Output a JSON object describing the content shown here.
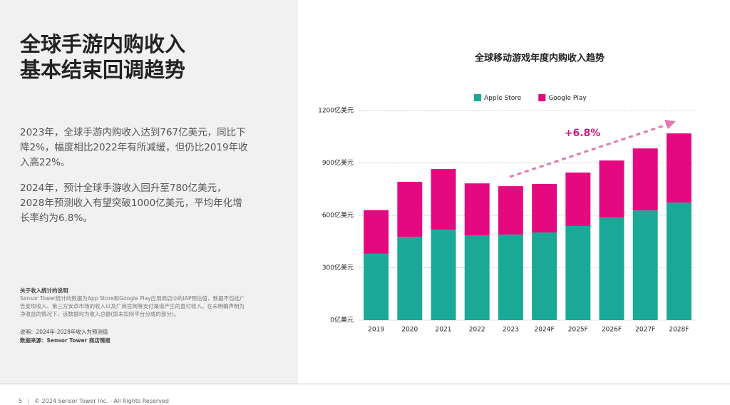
{
  "slide": {
    "title_lines": [
      "全球手游内购收入",
      "基本结束回调趋势"
    ],
    "paragraphs": [
      "2023年，全球手游内购收入达到767亿美元，同比下降2%，幅度相比2022年有所减缓，但仍比2019年收入高22%。",
      "2024年，预计全球手游收入回升至780亿美元，2028年预测收入有望突破1000亿美元，平均年化增长率约为6.8%。"
    ],
    "note_heading": "关于收入统计的说明",
    "note_text": "Sensor Tower统计的数据为App Store和Google Play应用商店中的IAP预估值，数据不包括广告变现收入、第三方安卓市场的收入以及厂商官网等支付渠道产生的直付收入。在未明确声明为净收益的情况下，该数据均为收入总额(即未扣除平台分成的部分)。",
    "footnote_lines": [
      "说明：2024年-2028年收入为预测值",
      "数据来源：Sensor Tower 商店情报"
    ],
    "page_number": "5",
    "copyright": "© 2024 Sensor Tower Inc. - All Rights Reserved"
  },
  "chart_data": {
    "type": "stacked_bar",
    "title": "全球移动游戏年度内购收入趋势",
    "categories": [
      "2019",
      "2020",
      "2021",
      "2022",
      "2023",
      "2024F",
      "2025F",
      "2026F",
      "2027F",
      "2028F"
    ],
    "series": [
      {
        "name": "Apple Store",
        "color": "#1aa997",
        "values": [
          380,
          477,
          518,
          486,
          490,
          502,
          539,
          588,
          628,
          673
        ]
      },
      {
        "name": "Google Play",
        "color": "#e5097f",
        "values": [
          250,
          315,
          347,
          297,
          277,
          278,
          306,
          326,
          355,
          396
        ]
      }
    ],
    "ylim": [
      0,
      1200
    ],
    "yticks": [
      {
        "value": 0,
        "label": "0亿美元"
      },
      {
        "value": 300,
        "label": "300亿美元"
      },
      {
        "value": 600,
        "label": "600亿美元"
      },
      {
        "value": 900,
        "label": "900亿美元"
      },
      {
        "value": 1200,
        "label": "1200亿美元"
      }
    ],
    "grid": true,
    "legend": "top",
    "annotation": "+6.8%"
  }
}
